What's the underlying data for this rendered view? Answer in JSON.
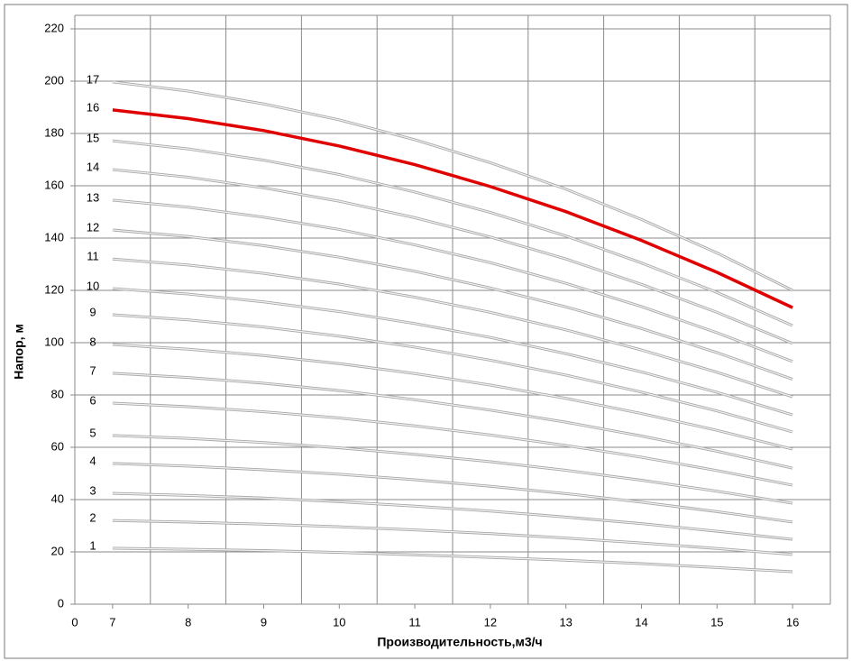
{
  "chart_data": {
    "type": "line",
    "y_label": "Напор, м",
    "x_label": "Производительность,м3/ч",
    "x_origin_label": "0",
    "x": [
      7,
      8,
      9,
      10,
      11,
      12,
      13,
      14,
      15,
      16
    ],
    "xlim": [
      6.5,
      16.5
    ],
    "xticks": [
      7,
      8,
      9,
      10,
      11,
      12,
      13,
      14,
      15,
      16
    ],
    "ylim": [
      0,
      220
    ],
    "yticks": [
      0,
      20,
      40,
      60,
      80,
      100,
      120,
      140,
      160,
      180,
      200,
      220
    ],
    "grid": true,
    "series": [
      {
        "name": "1",
        "color": "#a8a8a8",
        "values": [
          21.4,
          21.0,
          20.5,
          19.8,
          18.9,
          17.9,
          16.8,
          15.5,
          14.0,
          12.4
        ]
      },
      {
        "name": "2",
        "color": "#a8a8a8",
        "values": [
          32,
          31.4,
          30.6,
          29.6,
          28.4,
          27.0,
          25.3,
          23.4,
          21.3,
          19.0
        ]
      },
      {
        "name": "3",
        "color": "#a8a8a8",
        "values": [
          42.4,
          41.6,
          40.6,
          39.2,
          37.5,
          35.6,
          33.3,
          30.8,
          27.9,
          24.8
        ]
      },
      {
        "name": "4",
        "color": "#a8a8a8",
        "values": [
          53.8,
          52.8,
          51.4,
          49.7,
          47.6,
          45.1,
          42.3,
          39.0,
          35.4,
          31.4
        ]
      },
      {
        "name": "5",
        "color": "#a8a8a8",
        "values": [
          64.5,
          63.4,
          61.8,
          59.8,
          57.3,
          54.5,
          51.2,
          47.4,
          43.2,
          38.6
        ]
      },
      {
        "name": "6",
        "color": "#a8a8a8",
        "values": [
          76.9,
          75.5,
          73.6,
          71.2,
          68.2,
          64.7,
          60.7,
          56.2,
          51.1,
          45.5
        ]
      },
      {
        "name": "7",
        "color": "#a8a8a8",
        "values": [
          88.3,
          86.7,
          84.5,
          81.7,
          78.2,
          74.2,
          69.6,
          64.3,
          58.5,
          52.0
        ]
      },
      {
        "name": "8",
        "color": "#a8a8a8",
        "values": [
          99.3,
          97.5,
          95.1,
          92.0,
          88.2,
          83.8,
          78.7,
          72.9,
          66.5,
          59.3
        ]
      },
      {
        "name": "9",
        "color": "#a8a8a8",
        "values": [
          110.7,
          108.7,
          106.0,
          102.5,
          98.3,
          93.3,
          87.6,
          81.1,
          73.9,
          65.9
        ]
      },
      {
        "name": "10",
        "color": "#a8a8a8",
        "values": [
          120.7,
          118.6,
          115.6,
          111.9,
          107.3,
          102.0,
          95.8,
          88.8,
          81.0,
          72.4
        ]
      },
      {
        "name": "11",
        "color": "#a8a8a8",
        "values": [
          132,
          129.7,
          126.5,
          122.4,
          117.4,
          111.6,
          104.9,
          97.2,
          88.7,
          79.3
        ]
      },
      {
        "name": "12",
        "color": "#a8a8a8",
        "values": [
          143.1,
          140.6,
          137.1,
          132.7,
          127.3,
          120.9,
          113.7,
          105.4,
          96.2,
          86.0
        ]
      },
      {
        "name": "13",
        "color": "#a8a8a8",
        "values": [
          154.5,
          151.8,
          148.0,
          143.3,
          137.4,
          130.6,
          122.7,
          113.8,
          103.8,
          92.8
        ]
      },
      {
        "name": "14",
        "color": "#a8a8a8",
        "values": [
          166.2,
          163.3,
          159.2,
          154.1,
          147.8,
          140.4,
          132.0,
          122.3,
          111.6,
          99.7
        ]
      },
      {
        "name": "15",
        "color": "#a8a8a8",
        "values": [
          177.2,
          174.1,
          169.8,
          164.3,
          157.6,
          149.8,
          140.8,
          130.5,
          119.2,
          106.5
        ]
      },
      {
        "name": "16",
        "color": "#e00000",
        "values": [
          189,
          185.7,
          181.1,
          175.2,
          168.1,
          159.7,
          150.1,
          139.1,
          126.9,
          113.4
        ]
      },
      {
        "name": "17",
        "color": "#a8a8a8",
        "values": [
          199.7,
          196.2,
          191.3,
          185.2,
          177.6,
          168.8,
          158.7,
          147.1,
          134.3,
          120.0
        ]
      }
    ]
  }
}
